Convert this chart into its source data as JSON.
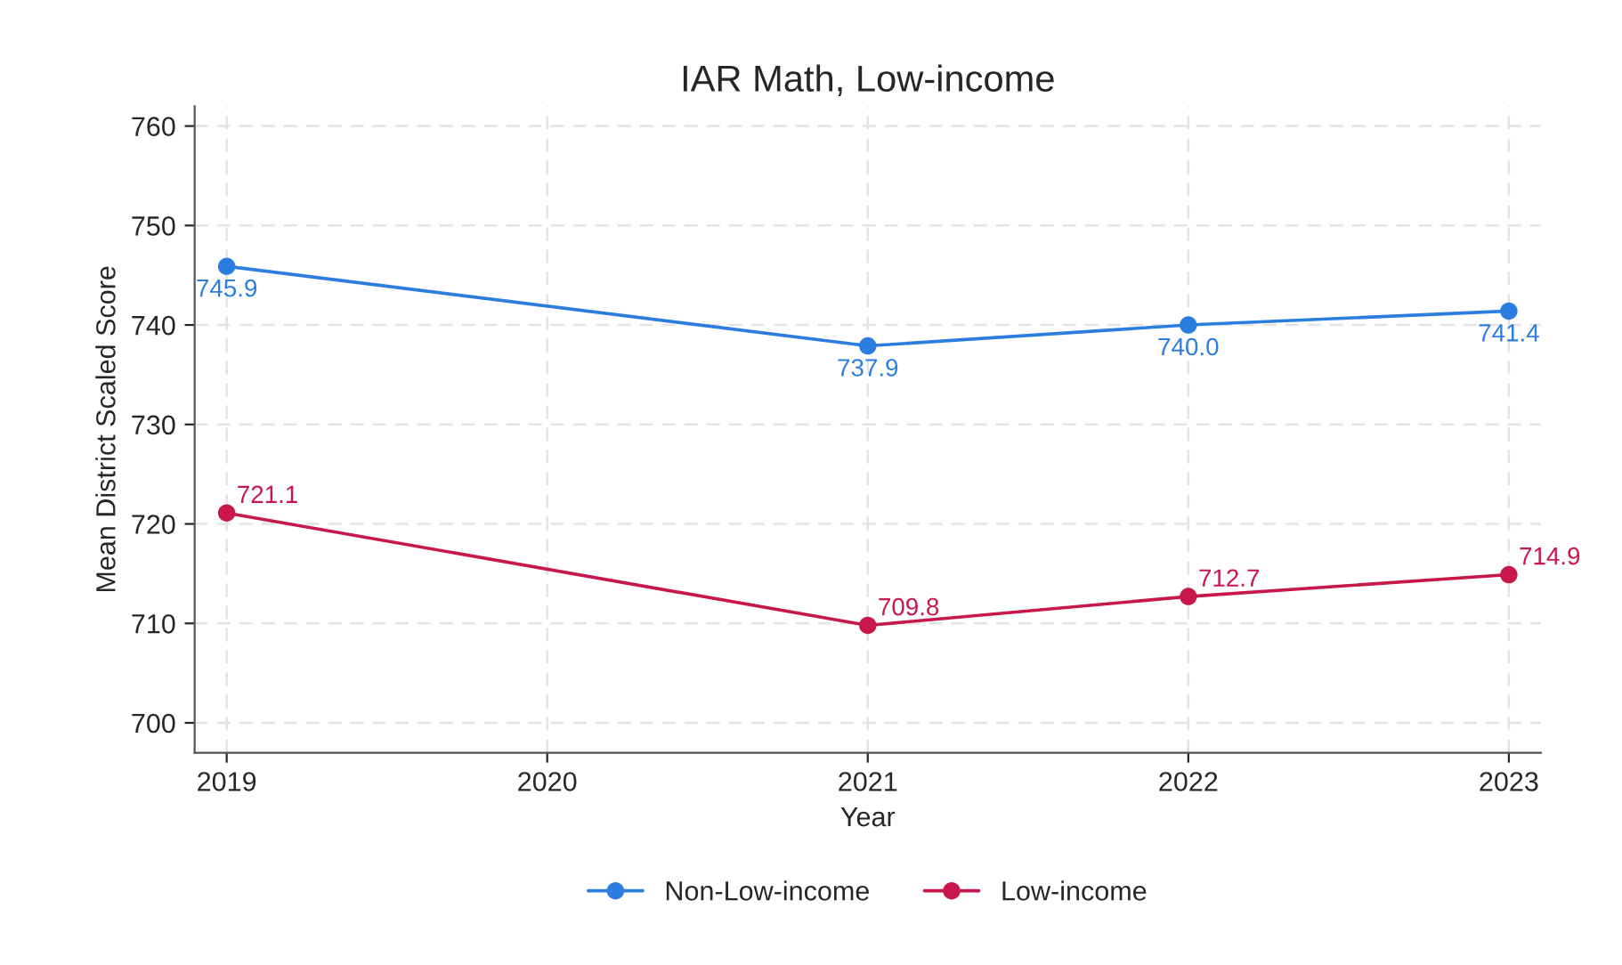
{
  "chart_data": {
    "type": "line",
    "title": "IAR Math, Low-income",
    "xlabel": "Year",
    "ylabel": "Mean District Scaled Score",
    "x": [
      2019,
      2021,
      2022,
      2023
    ],
    "series": [
      {
        "name": "Non-Low-income",
        "color": "#2b7de0",
        "values": [
          745.9,
          737.9,
          740.0,
          741.4
        ],
        "value_labels": [
          "745.9",
          "737.9",
          "740.0",
          "741.4"
        ]
      },
      {
        "name": "Low-income",
        "color": "#c8174a",
        "values": [
          721.1,
          709.8,
          712.7,
          714.9
        ],
        "value_labels": [
          "721.1",
          "709.8",
          "712.7",
          "714.9"
        ]
      }
    ],
    "xlim": [
      2018.9,
      2023.1
    ],
    "xticks": [
      2019,
      2020,
      2021,
      2022,
      2023
    ],
    "ylim": [
      697,
      762
    ],
    "yticks": [
      700,
      710,
      720,
      730,
      740,
      750,
      760
    ],
    "grid": true,
    "legend": "bottom",
    "marker": "circle",
    "line_style": "solid"
  }
}
